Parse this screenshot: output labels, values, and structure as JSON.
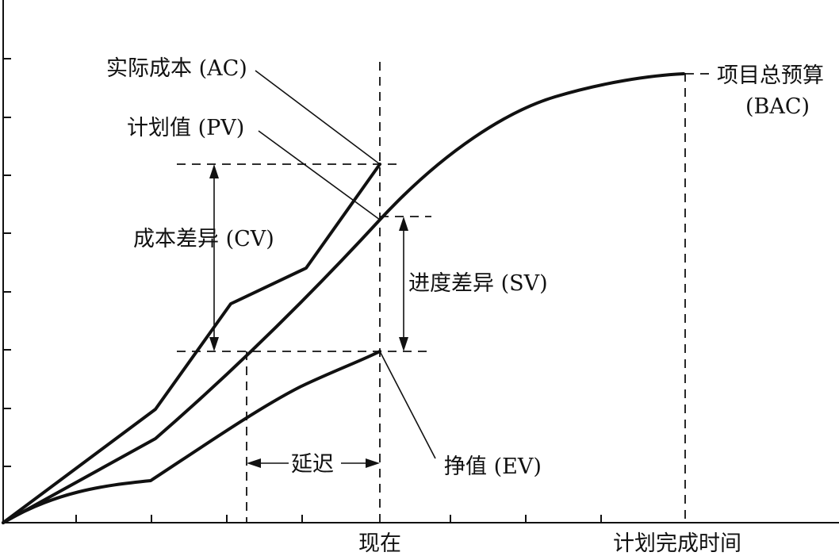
{
  "diagram": {
    "labels": {
      "ac": "实际成本 (AC)",
      "pv": "计划值 (PV)",
      "cv": "成本差异 (CV)",
      "sv": "进度差异 (SV)",
      "delay": "延迟",
      "ev": "挣值 (EV)",
      "bac_line1": "项目总预算",
      "bac_line2": "(BAC)",
      "now": "现在",
      "planned_finish": "计划完成时间"
    },
    "curves": [
      {
        "name": "实际成本 (AC)",
        "shape": "polyline rising steeply, ending at the now line above PV"
      },
      {
        "name": "计划值 (PV)",
        "shape": "S-curve from origin to BAC at planned finish"
      },
      {
        "name": "挣值 (EV)",
        "shape": "concave curve ending at the now line below PV"
      }
    ]
  }
}
